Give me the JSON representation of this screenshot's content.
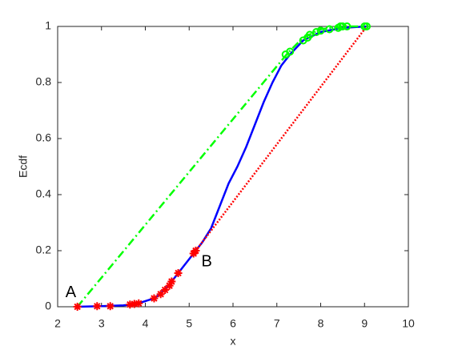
{
  "chart_data": {
    "type": "line",
    "xlabel": "x",
    "ylabel": "Ecdf",
    "xlim": [
      2,
      10
    ],
    "xticks": [
      2,
      3,
      4,
      5,
      6,
      7,
      8,
      9,
      10
    ],
    "ylim": [
      0,
      1
    ],
    "yticks": [
      0,
      0.2,
      0.4,
      0.6,
      0.8,
      1
    ],
    "grid": false,
    "box": true,
    "series": [
      {
        "color": "#0000ff",
        "line": "solid",
        "marker": "none",
        "x": [
          2.45,
          3,
          3.5,
          3.8,
          4.1,
          4.3,
          4.5,
          4.7,
          4.9,
          5.1,
          5.3,
          5.5,
          5.7,
          5.9,
          6.1,
          6.3,
          6.5,
          6.7,
          6.9,
          7.1,
          7.3,
          7.6,
          8,
          8.5,
          9.05
        ],
        "values": [
          0,
          0.002,
          0.005,
          0.01,
          0.025,
          0.04,
          0.07,
          0.11,
          0.15,
          0.19,
          0.23,
          0.28,
          0.36,
          0.44,
          0.5,
          0.57,
          0.65,
          0.73,
          0.8,
          0.86,
          0.9,
          0.95,
          0.98,
          0.995,
          1
        ]
      },
      {
        "color": "#00ff00",
        "line": "dashdot",
        "marker": "none",
        "x": [
          2.45,
          7.25,
          7.6,
          8.0,
          8.5,
          9.05
        ],
        "values": [
          0,
          0.905,
          0.96,
          0.99,
          1,
          1
        ]
      },
      {
        "color": "#ff0000",
        "line": "dotted",
        "marker": "none",
        "x": [
          5.15,
          9.05
        ],
        "values": [
          0.2,
          1
        ]
      },
      {
        "color": "#00ff00",
        "line": "none",
        "marker": "circle",
        "x": [
          7.2,
          7.3,
          7.6,
          7.7,
          7.75,
          7.9,
          8.0,
          8.2,
          8.4,
          8.45,
          8.5,
          8.6,
          9.0,
          9.05
        ],
        "values": [
          0.9,
          0.91,
          0.95,
          0.96,
          0.97,
          0.98,
          0.985,
          0.99,
          0.995,
          1,
          1,
          1,
          1,
          1
        ]
      },
      {
        "color": "#ff0000",
        "line": "none",
        "marker": "star",
        "x": [
          2.45,
          2.9,
          3.2,
          3.65,
          3.75,
          3.85,
          4.2,
          4.35,
          4.45,
          4.55,
          4.6,
          4.75,
          5.1,
          5.15
        ],
        "values": [
          0,
          0.002,
          0.002,
          0.008,
          0.01,
          0.012,
          0.03,
          0.045,
          0.06,
          0.075,
          0.09,
          0.12,
          0.19,
          0.2
        ]
      }
    ],
    "annotations": [
      {
        "text": "A",
        "x": 2.3,
        "y": 0.05
      },
      {
        "text": "B",
        "x": 5.4,
        "y": 0.16
      }
    ]
  }
}
